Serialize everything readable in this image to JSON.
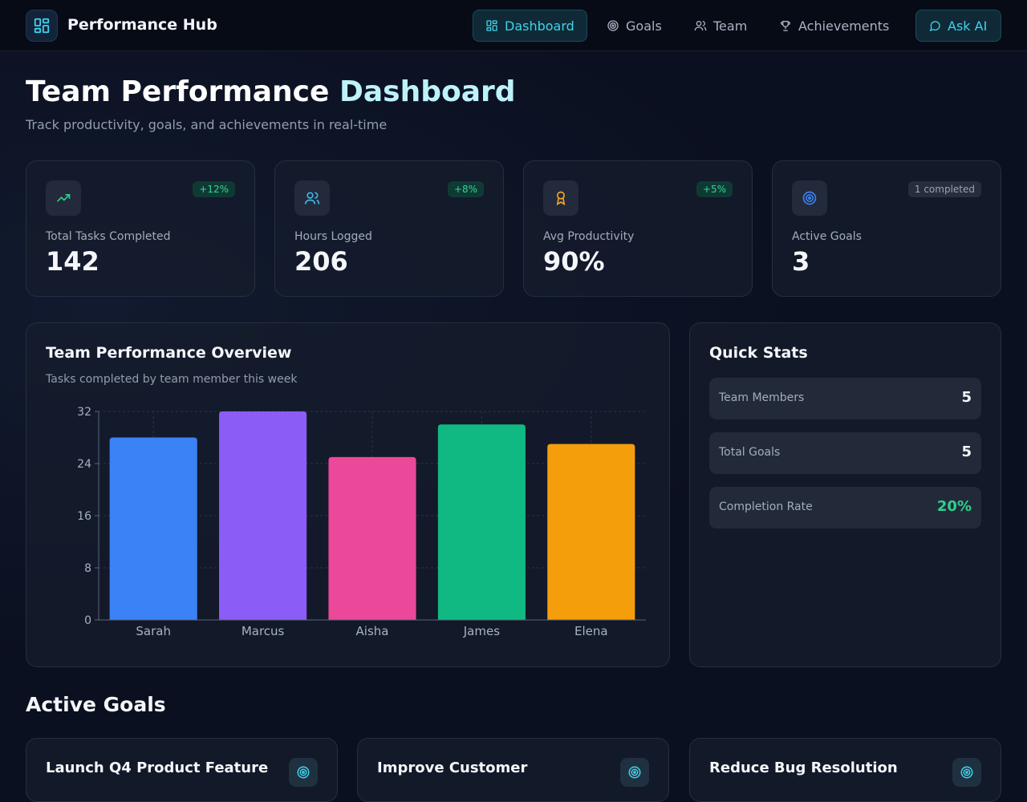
{
  "app": {
    "title": "Performance Hub"
  },
  "nav": {
    "dashboard": "Dashboard",
    "goals": "Goals",
    "team": "Team",
    "achievements": "Achievements",
    "ask_ai": "Ask AI"
  },
  "header": {
    "title_main": "Team Performance ",
    "title_accent": "Dashboard",
    "subtitle": "Track productivity, goals, and achievements in real-time"
  },
  "stats": [
    {
      "label": "Total Tasks Completed",
      "value": "142",
      "badge": "+12%",
      "icon": "trending-up-icon"
    },
    {
      "label": "Hours Logged",
      "value": "206",
      "badge": "+8%",
      "icon": "users-icon"
    },
    {
      "label": "Avg Productivity",
      "value": "90%",
      "badge": "+5%",
      "icon": "award-icon"
    },
    {
      "label": "Active Goals",
      "value": "3",
      "badge": "1 completed",
      "icon": "target-icon"
    }
  ],
  "chart_panel": {
    "title": "Team Performance Overview",
    "subtitle": "Tasks completed by team member this week"
  },
  "chart_data": {
    "type": "bar",
    "categories": [
      "Sarah",
      "Marcus",
      "Aisha",
      "James",
      "Elena"
    ],
    "values": [
      28,
      32,
      25,
      30,
      27
    ],
    "colors": [
      "#3b82f6",
      "#8b5cf6",
      "#ec4899",
      "#10b981",
      "#f59e0b"
    ],
    "ylim": [
      0,
      32
    ],
    "yticks": [
      0,
      8,
      16,
      24,
      32
    ],
    "grid": true
  },
  "quick_stats": {
    "title": "Quick Stats",
    "rows": [
      {
        "label": "Team Members",
        "value": "5"
      },
      {
        "label": "Total Goals",
        "value": "5"
      },
      {
        "label": "Completion Rate",
        "value": "20%"
      }
    ]
  },
  "goals_section": {
    "title": "Active Goals",
    "goals": [
      {
        "title": "Launch Q4 Product Feature"
      },
      {
        "title": "Improve Customer"
      },
      {
        "title": "Reduce Bug Resolution"
      }
    ]
  },
  "colors": {
    "accent": "#3fd2ec",
    "success": "#2fd08d",
    "background": "#0b1020"
  }
}
